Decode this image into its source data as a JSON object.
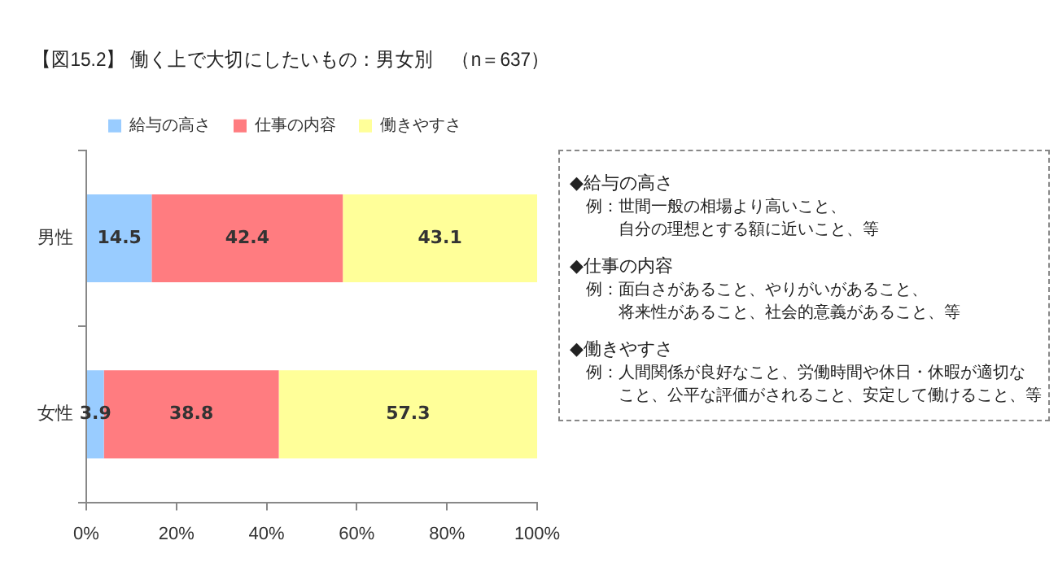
{
  "chart_data": {
    "type": "bar",
    "orientation": "horizontal",
    "stacked": true,
    "title": "【図15.2】 働く上で大切にしたいもの：男女別　（n＝637）",
    "categories": [
      "男性",
      "女性"
    ],
    "series": [
      {
        "name": "給与の高さ",
        "color": "#99ccff",
        "values": [
          14.5,
          3.9
        ]
      },
      {
        "name": "仕事の内容",
        "color": "#ff7c80",
        "values": [
          42.4,
          38.8
        ]
      },
      {
        "name": "働きやすさ",
        "color": "#ffff99",
        "values": [
          43.1,
          57.3
        ]
      }
    ],
    "xlim": [
      0,
      100
    ],
    "xticks": [
      {
        "value": 0,
        "label": "0%"
      },
      {
        "value": 20,
        "label": "20%"
      },
      {
        "value": 40,
        "label": "40%"
      },
      {
        "value": 60,
        "label": "60%"
      },
      {
        "value": 80,
        "label": "80%"
      },
      {
        "value": 100,
        "label": "100%"
      }
    ],
    "grid": false,
    "legend": "top",
    "data_labels": true,
    "annotations": [
      "◆給与の高さ",
      "例：世間一般の相場より高いこと、",
      "自分の理想とする額に近いこと、等",
      "◆仕事の内容",
      "例：面白さがあること、やりがいがあること、",
      "将来性があること、社会的意義があること、等",
      "◆働きやすさ",
      "例：人間関係が良好なこと、労働時間や休日・休暇が適切な",
      "こと、公平な評価がされること、安定して働けること、等"
    ]
  }
}
